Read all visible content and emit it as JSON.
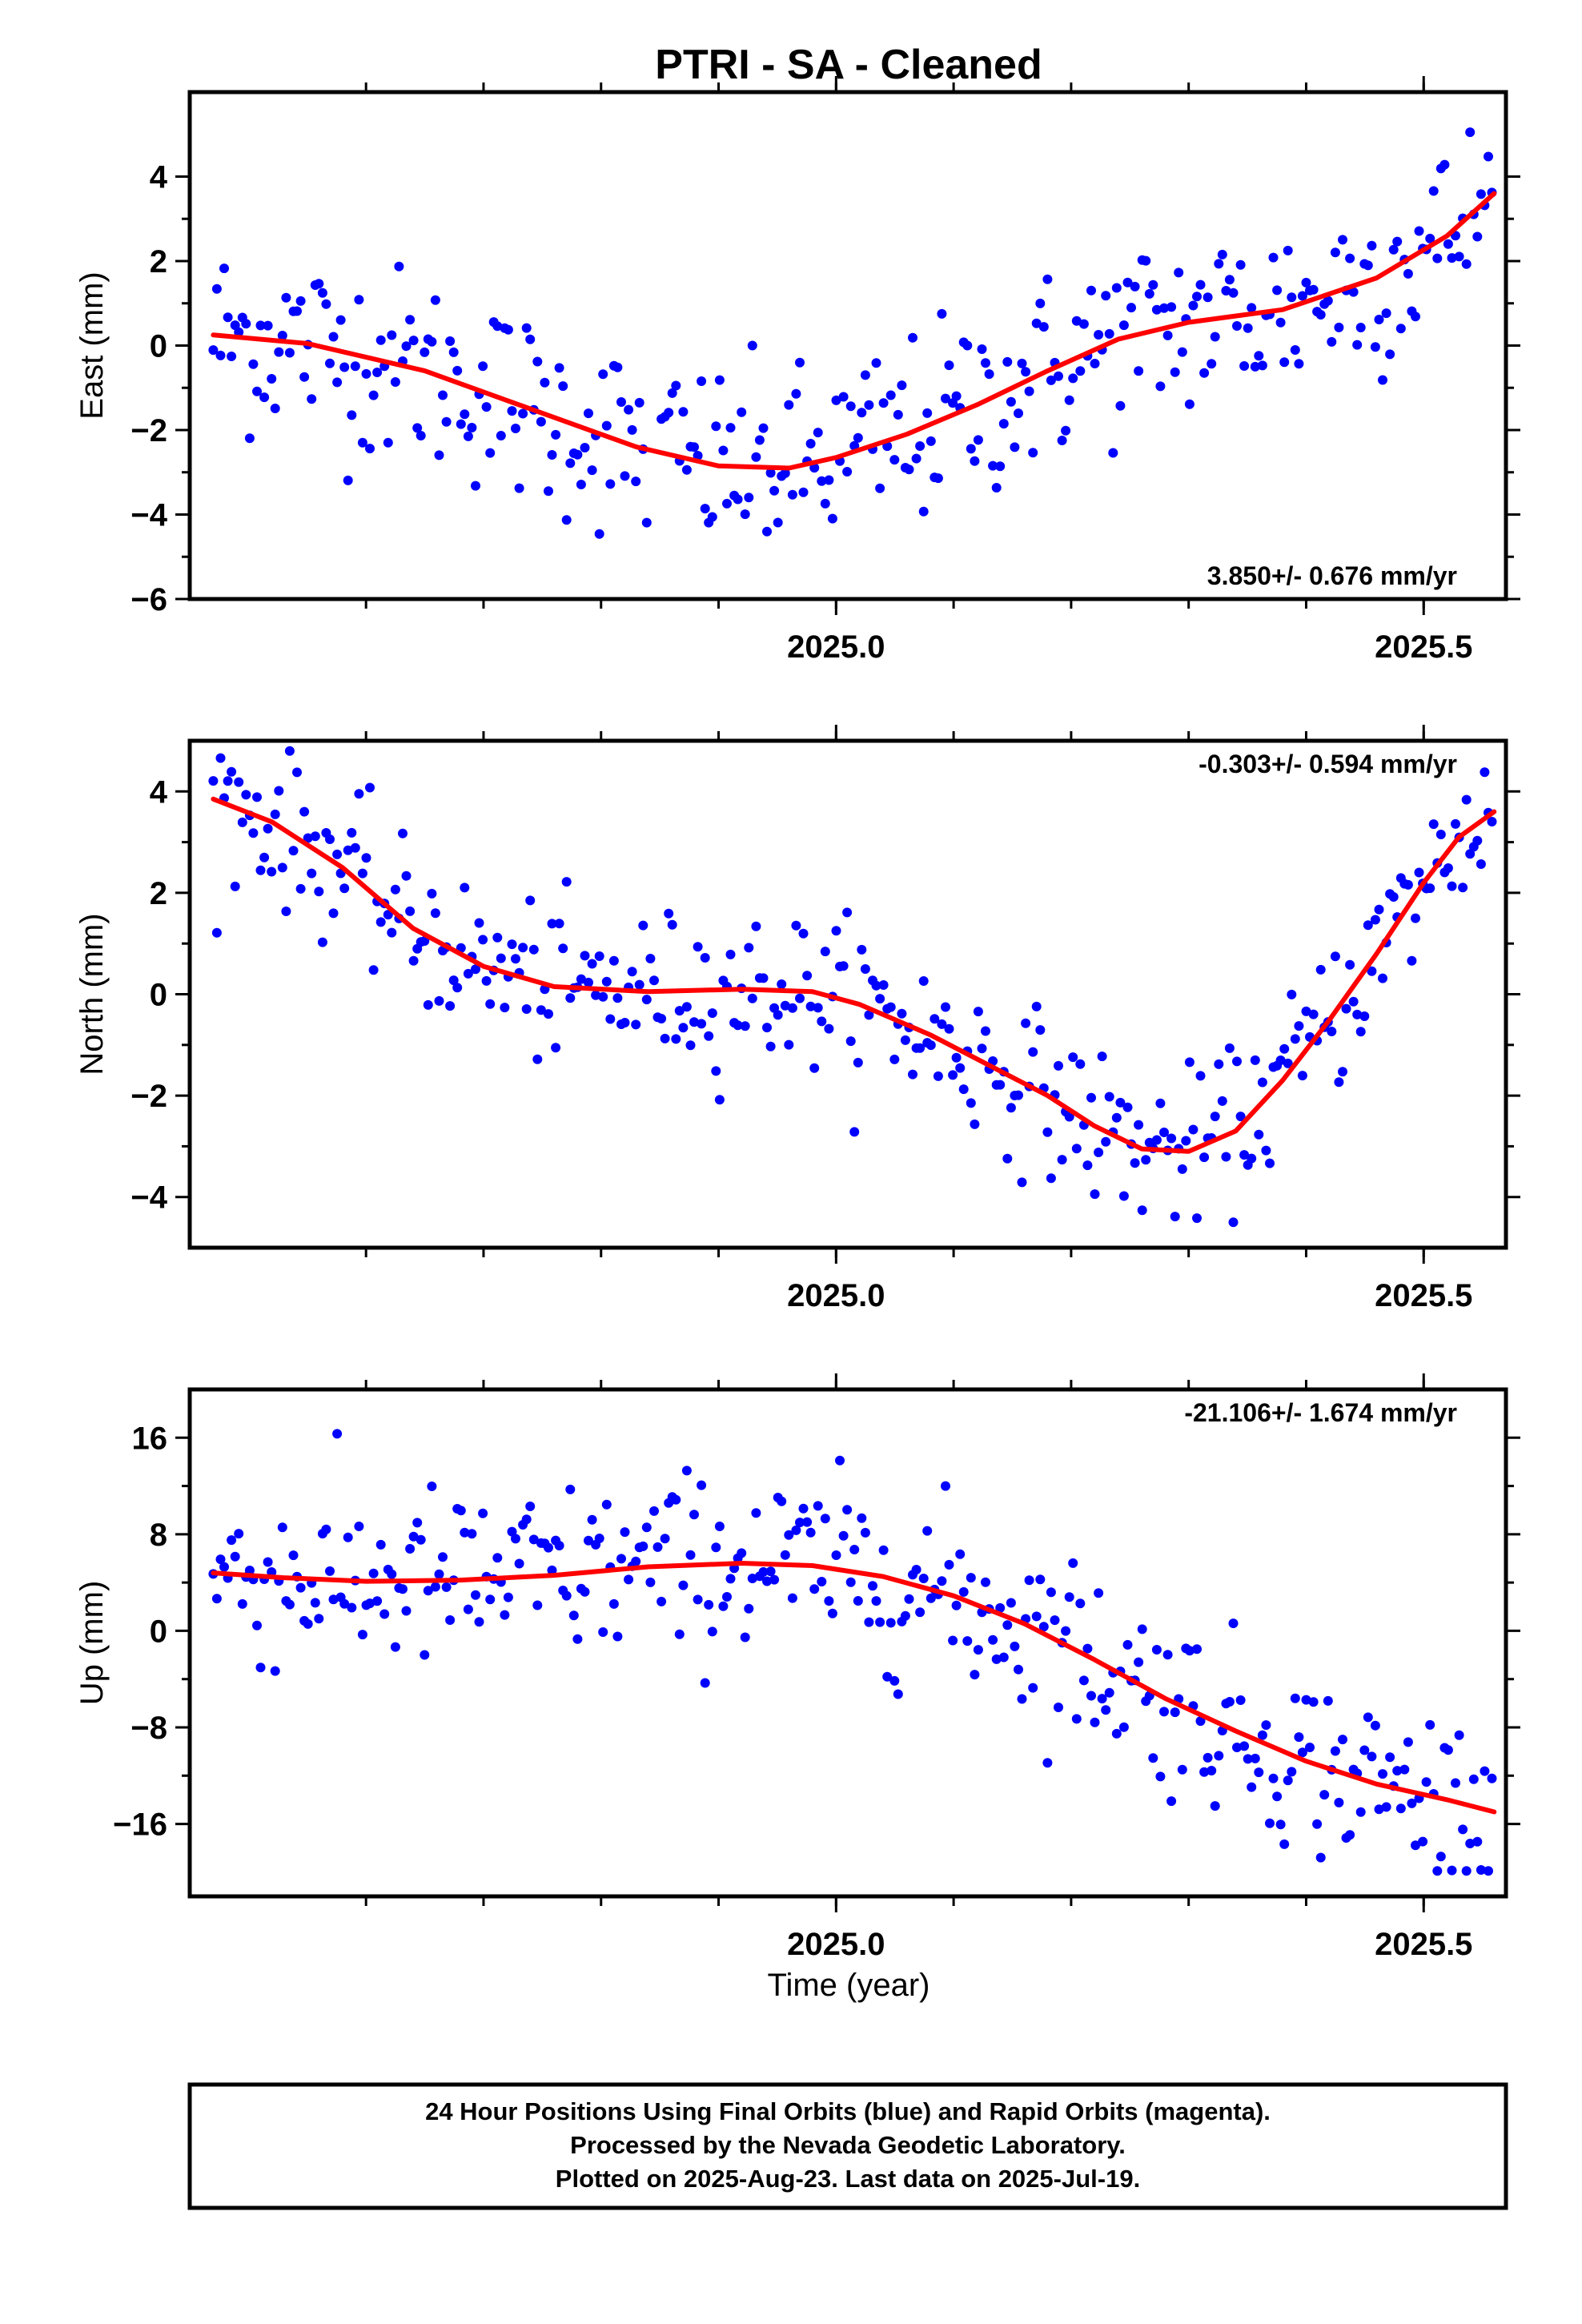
{
  "chart_data": {
    "type": "scatter",
    "title": "PTRI  - SA - Cleaned",
    "xlabel": "Time (year)",
    "xlim": [
      2024.45,
      2025.57
    ],
    "x_ticks": [
      2025.0,
      2025.5
    ],
    "x_tick_labels": [
      "2025.0",
      "2025.5"
    ],
    "marker_color": "#0000ff",
    "fit_color": "#ff0000",
    "footer": [
      "24 Hour Positions Using Final Orbits (blue) and Rapid Orbits (magenta).",
      "Processed by the Nevada Geodetic Laboratory.",
      "Plotted on 2025-Aug-23. Last data on 2025-Jul-19."
    ],
    "panels": [
      {
        "name": "East",
        "ylabel": "East (mm)",
        "ylim": [
          -6,
          6
        ],
        "yticks": [
          4,
          2,
          0,
          -2,
          -4,
          -6
        ],
        "ytick_labels": [
          "4",
          "2",
          "0",
          "−2",
          "−4",
          "−6"
        ],
        "rate": "3.850+/- 0.676 mm/yr",
        "rate_pos": "bottom-right",
        "fit": [
          [
            2024.47,
            0.25
          ],
          [
            2024.55,
            0.05
          ],
          [
            2024.65,
            -0.6
          ],
          [
            2024.75,
            -1.6
          ],
          [
            2024.83,
            -2.4
          ],
          [
            2024.9,
            -2.85
          ],
          [
            2024.96,
            -2.9
          ],
          [
            2025.0,
            -2.65
          ],
          [
            2025.06,
            -2.1
          ],
          [
            2025.12,
            -1.4
          ],
          [
            2025.18,
            -0.6
          ],
          [
            2025.24,
            0.15
          ],
          [
            2025.3,
            0.55
          ],
          [
            2025.38,
            0.85
          ],
          [
            2025.46,
            1.6
          ],
          [
            2025.52,
            2.6
          ],
          [
            2025.56,
            3.6
          ]
        ]
      },
      {
        "name": "North",
        "ylabel": "North (mm)",
        "ylim": [
          -5,
          5
        ],
        "yticks": [
          4,
          2,
          0,
          -2,
          -4
        ],
        "ytick_labels": [
          "4",
          "2",
          "0",
          "−2",
          "−4"
        ],
        "rate": "-0.303+/- 0.594 mm/yr",
        "rate_pos": "top-right",
        "fit": [
          [
            2024.47,
            3.85
          ],
          [
            2024.52,
            3.4
          ],
          [
            2024.58,
            2.5
          ],
          [
            2024.64,
            1.3
          ],
          [
            2024.7,
            0.55
          ],
          [
            2024.76,
            0.15
          ],
          [
            2024.84,
            0.05
          ],
          [
            2024.92,
            0.1
          ],
          [
            2024.98,
            0.05
          ],
          [
            2025.02,
            -0.2
          ],
          [
            2025.08,
            -0.8
          ],
          [
            2025.13,
            -1.4
          ],
          [
            2025.18,
            -2.0
          ],
          [
            2025.22,
            -2.6
          ],
          [
            2025.26,
            -3.05
          ],
          [
            2025.3,
            -3.1
          ],
          [
            2025.34,
            -2.7
          ],
          [
            2025.38,
            -1.7
          ],
          [
            2025.42,
            -0.5
          ],
          [
            2025.46,
            0.8
          ],
          [
            2025.5,
            2.2
          ],
          [
            2025.53,
            3.1
          ],
          [
            2025.56,
            3.6
          ]
        ]
      },
      {
        "name": "Up",
        "ylabel": "Up (mm)",
        "ylim": [
          -22,
          20
        ],
        "yticks": [
          16,
          8,
          0,
          -8,
          -16
        ],
        "ytick_labels": [
          "16",
          "8",
          "0",
          "−8",
          "−16"
        ],
        "rate": "-21.106+/- 1.674 mm/yr",
        "rate_pos": "top-right",
        "fit": [
          [
            2024.47,
            4.8
          ],
          [
            2024.53,
            4.4
          ],
          [
            2024.6,
            4.1
          ],
          [
            2024.68,
            4.2
          ],
          [
            2024.76,
            4.6
          ],
          [
            2024.84,
            5.3
          ],
          [
            2024.92,
            5.6
          ],
          [
            2024.98,
            5.4
          ],
          [
            2025.04,
            4.5
          ],
          [
            2025.1,
            2.9
          ],
          [
            2025.16,
            0.6
          ],
          [
            2025.22,
            -2.4
          ],
          [
            2025.28,
            -5.6
          ],
          [
            2025.34,
            -8.3
          ],
          [
            2025.4,
            -10.8
          ],
          [
            2025.46,
            -12.7
          ],
          [
            2025.52,
            -14.0
          ],
          [
            2025.56,
            -15.0
          ]
        ]
      }
    ]
  }
}
